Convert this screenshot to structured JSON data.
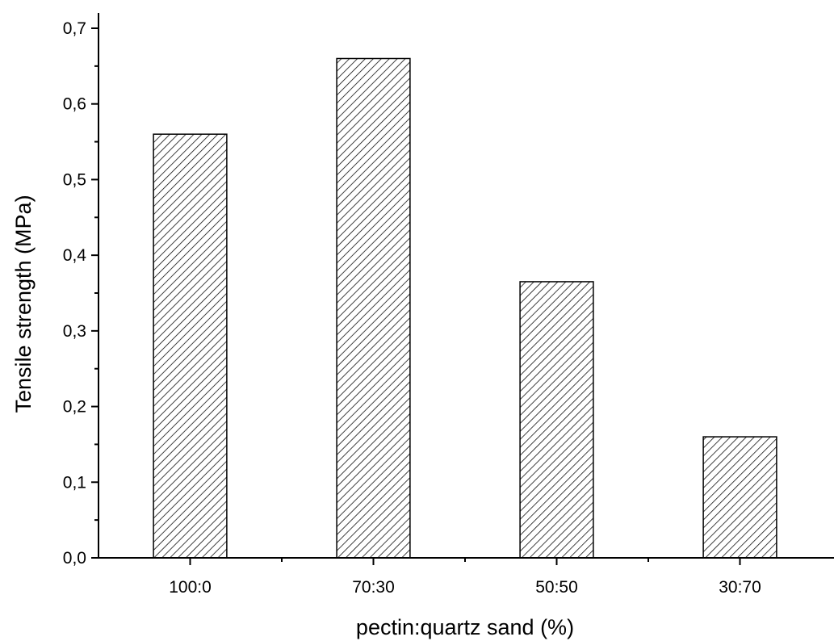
{
  "chart_data": {
    "type": "bar",
    "categories": [
      "100:0",
      "70:30",
      "50:50",
      "30:70"
    ],
    "values": [
      0.56,
      0.66,
      0.365,
      0.16
    ],
    "title": "",
    "xlabel": "pectin:quartz sand (%)",
    "ylabel": "Tensile strength (MPa)",
    "ylim": [
      0,
      0.7
    ],
    "yticks": [
      "0,0",
      "0,1",
      "0,2",
      "0,3",
      "0,4",
      "0,5",
      "0,6",
      "0,7"
    ],
    "yminor_step": 0.05,
    "bar_fill": "diagonal-hatch",
    "grid": false,
    "legend": "none"
  },
  "colors": {
    "axis": "#000000",
    "bar_outline": "#000000",
    "hatch": "#000000",
    "background": "#ffffff"
  }
}
